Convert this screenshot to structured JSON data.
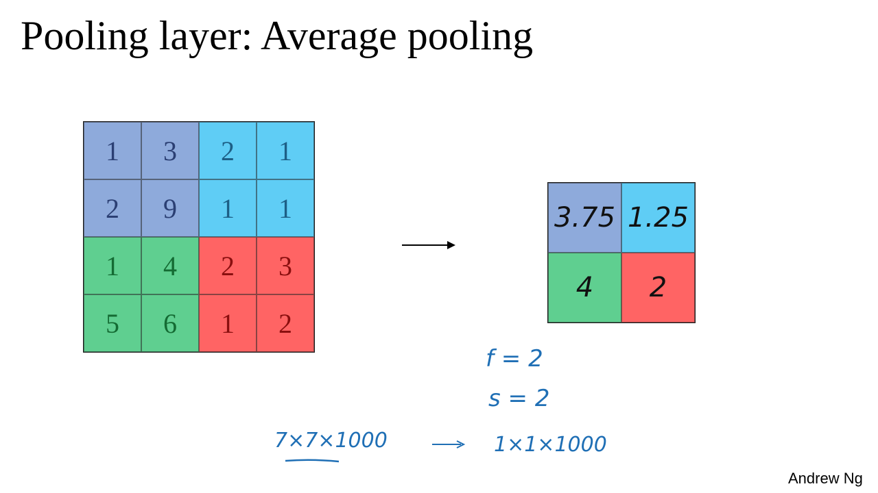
{
  "slide": {
    "title": "Pooling layer: Average pooling",
    "credit": "Andrew Ng"
  },
  "colors": {
    "blue_quadrant": "#8eaadb",
    "cyan_quadrant": "#5fcdf5",
    "green_quadrant": "#5fcf90",
    "red_quadrant": "#ff6464",
    "ink": "#1f6fb5"
  },
  "input_matrix": {
    "rows": [
      [
        "1",
        "3",
        "2",
        "1"
      ],
      [
        "2",
        "9",
        "1",
        "1"
      ],
      [
        "1",
        "4",
        "2",
        "3"
      ],
      [
        "5",
        "6",
        "1",
        "2"
      ]
    ]
  },
  "output_matrix": {
    "rows": [
      [
        "3.75",
        "1.25"
      ],
      [
        "4",
        "2"
      ]
    ]
  },
  "annotations": {
    "f": "f = 2",
    "s": "s = 2",
    "input_shape": "7×7×1000",
    "output_shape": "1×1×1000",
    "arrow_icon": "right-arrow-icon"
  }
}
